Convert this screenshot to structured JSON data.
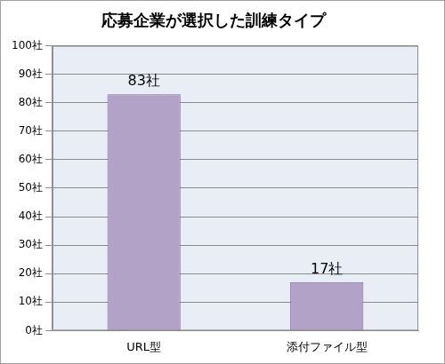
{
  "chart_data": {
    "type": "bar",
    "title": "応募企業が選択した訓練タイプ",
    "categories": [
      "URL型",
      "添付ファイル型"
    ],
    "values": [
      83,
      17
    ],
    "value_labels": [
      "83社",
      "17社"
    ],
    "data_labels": true,
    "color": "#b3a2c7",
    "ylim": [
      0,
      100
    ],
    "yticks": [
      {
        "value": 0,
        "label": "0社"
      },
      {
        "value": 10,
        "label": "10社"
      },
      {
        "value": 20,
        "label": "20社"
      },
      {
        "value": 30,
        "label": "30社"
      },
      {
        "value": 40,
        "label": "40社"
      },
      {
        "value": 50,
        "label": "50社"
      },
      {
        "value": 60,
        "label": "60社"
      },
      {
        "value": 70,
        "label": "70社"
      },
      {
        "value": 80,
        "label": "80社"
      },
      {
        "value": 90,
        "label": "90社"
      },
      {
        "value": 100,
        "label": "100社"
      }
    ],
    "grid": true
  }
}
